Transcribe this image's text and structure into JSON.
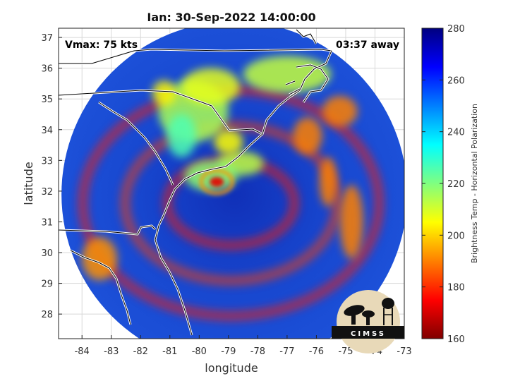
{
  "chart_data": {
    "type": "heatmap",
    "title": "Ian: 30-Sep-2022 14:00:00",
    "xlabel": "longitude",
    "ylabel": "latitude",
    "xlim": [
      -84.8,
      -73
    ],
    "ylim": [
      27.2,
      37.3
    ],
    "xticks": [
      -84,
      -83,
      -82,
      -81,
      -80,
      -79,
      -78,
      -77,
      -76,
      -75,
      -74,
      -73
    ],
    "yticks": [
      28,
      29,
      30,
      31,
      32,
      33,
      34,
      35,
      36,
      37
    ],
    "grid": true,
    "annotations": {
      "vmax": "Vmax: 75 kts",
      "time_away": "03:37 away"
    },
    "storm_center": {
      "lon": -79.4,
      "lat": 32.3
    },
    "swath_center": {
      "lon": -78.8,
      "lat": 31.9
    },
    "colorbar": {
      "label": "Brightness Temp - Horizontal Polarization",
      "range": [
        160,
        280
      ],
      "ticks": [
        160,
        180,
        200,
        220,
        240,
        260,
        280
      ],
      "colormap": "jet"
    },
    "warm_regions": [
      {
        "lon": -80.2,
        "lat": 34.6,
        "rlon": 1.2,
        "rlat": 1.0,
        "value": 225
      },
      {
        "lon": -79.6,
        "lat": 35.4,
        "rlon": 1.0,
        "rlat": 0.6,
        "value": 232
      },
      {
        "lon": -77.0,
        "lat": 35.8,
        "rlon": 1.5,
        "rlat": 0.6,
        "value": 228
      },
      {
        "lon": -78.6,
        "lat": 32.9,
        "rlon": 0.8,
        "rlat": 0.4,
        "value": 226
      },
      {
        "lon": -79.6,
        "lat": 32.5,
        "rlon": 0.9,
        "rlat": 0.5,
        "value": 222
      },
      {
        "lon": -80.6,
        "lat": 33.8,
        "rlon": 0.5,
        "rlat": 0.7,
        "value": 214
      },
      {
        "lon": -81.2,
        "lat": 35.2,
        "rlon": 0.4,
        "rlat": 0.4,
        "value": 236
      },
      {
        "lon": -79.0,
        "lat": 33.6,
        "rlon": 0.5,
        "rlat": 0.4,
        "value": 235
      },
      {
        "lon": -83.4,
        "lat": 29.8,
        "rlon": 0.6,
        "rlat": 0.7,
        "value": 248
      },
      {
        "lon": -74.8,
        "lat": 31.0,
        "rlon": 0.4,
        "rlat": 1.2,
        "value": 250
      },
      {
        "lon": -75.6,
        "lat": 32.3,
        "rlon": 0.3,
        "rlat": 0.8,
        "value": 250
      },
      {
        "lon": -76.3,
        "lat": 33.8,
        "rlon": 0.5,
        "rlat": 0.6,
        "value": 250
      },
      {
        "lon": -75.2,
        "lat": 34.6,
        "rlon": 0.6,
        "rlat": 0.5,
        "value": 250
      }
    ]
  },
  "logo": {
    "text": "CIMSS",
    "colors": {
      "disk": "#e8d9b8",
      "ground": "#111111"
    }
  }
}
